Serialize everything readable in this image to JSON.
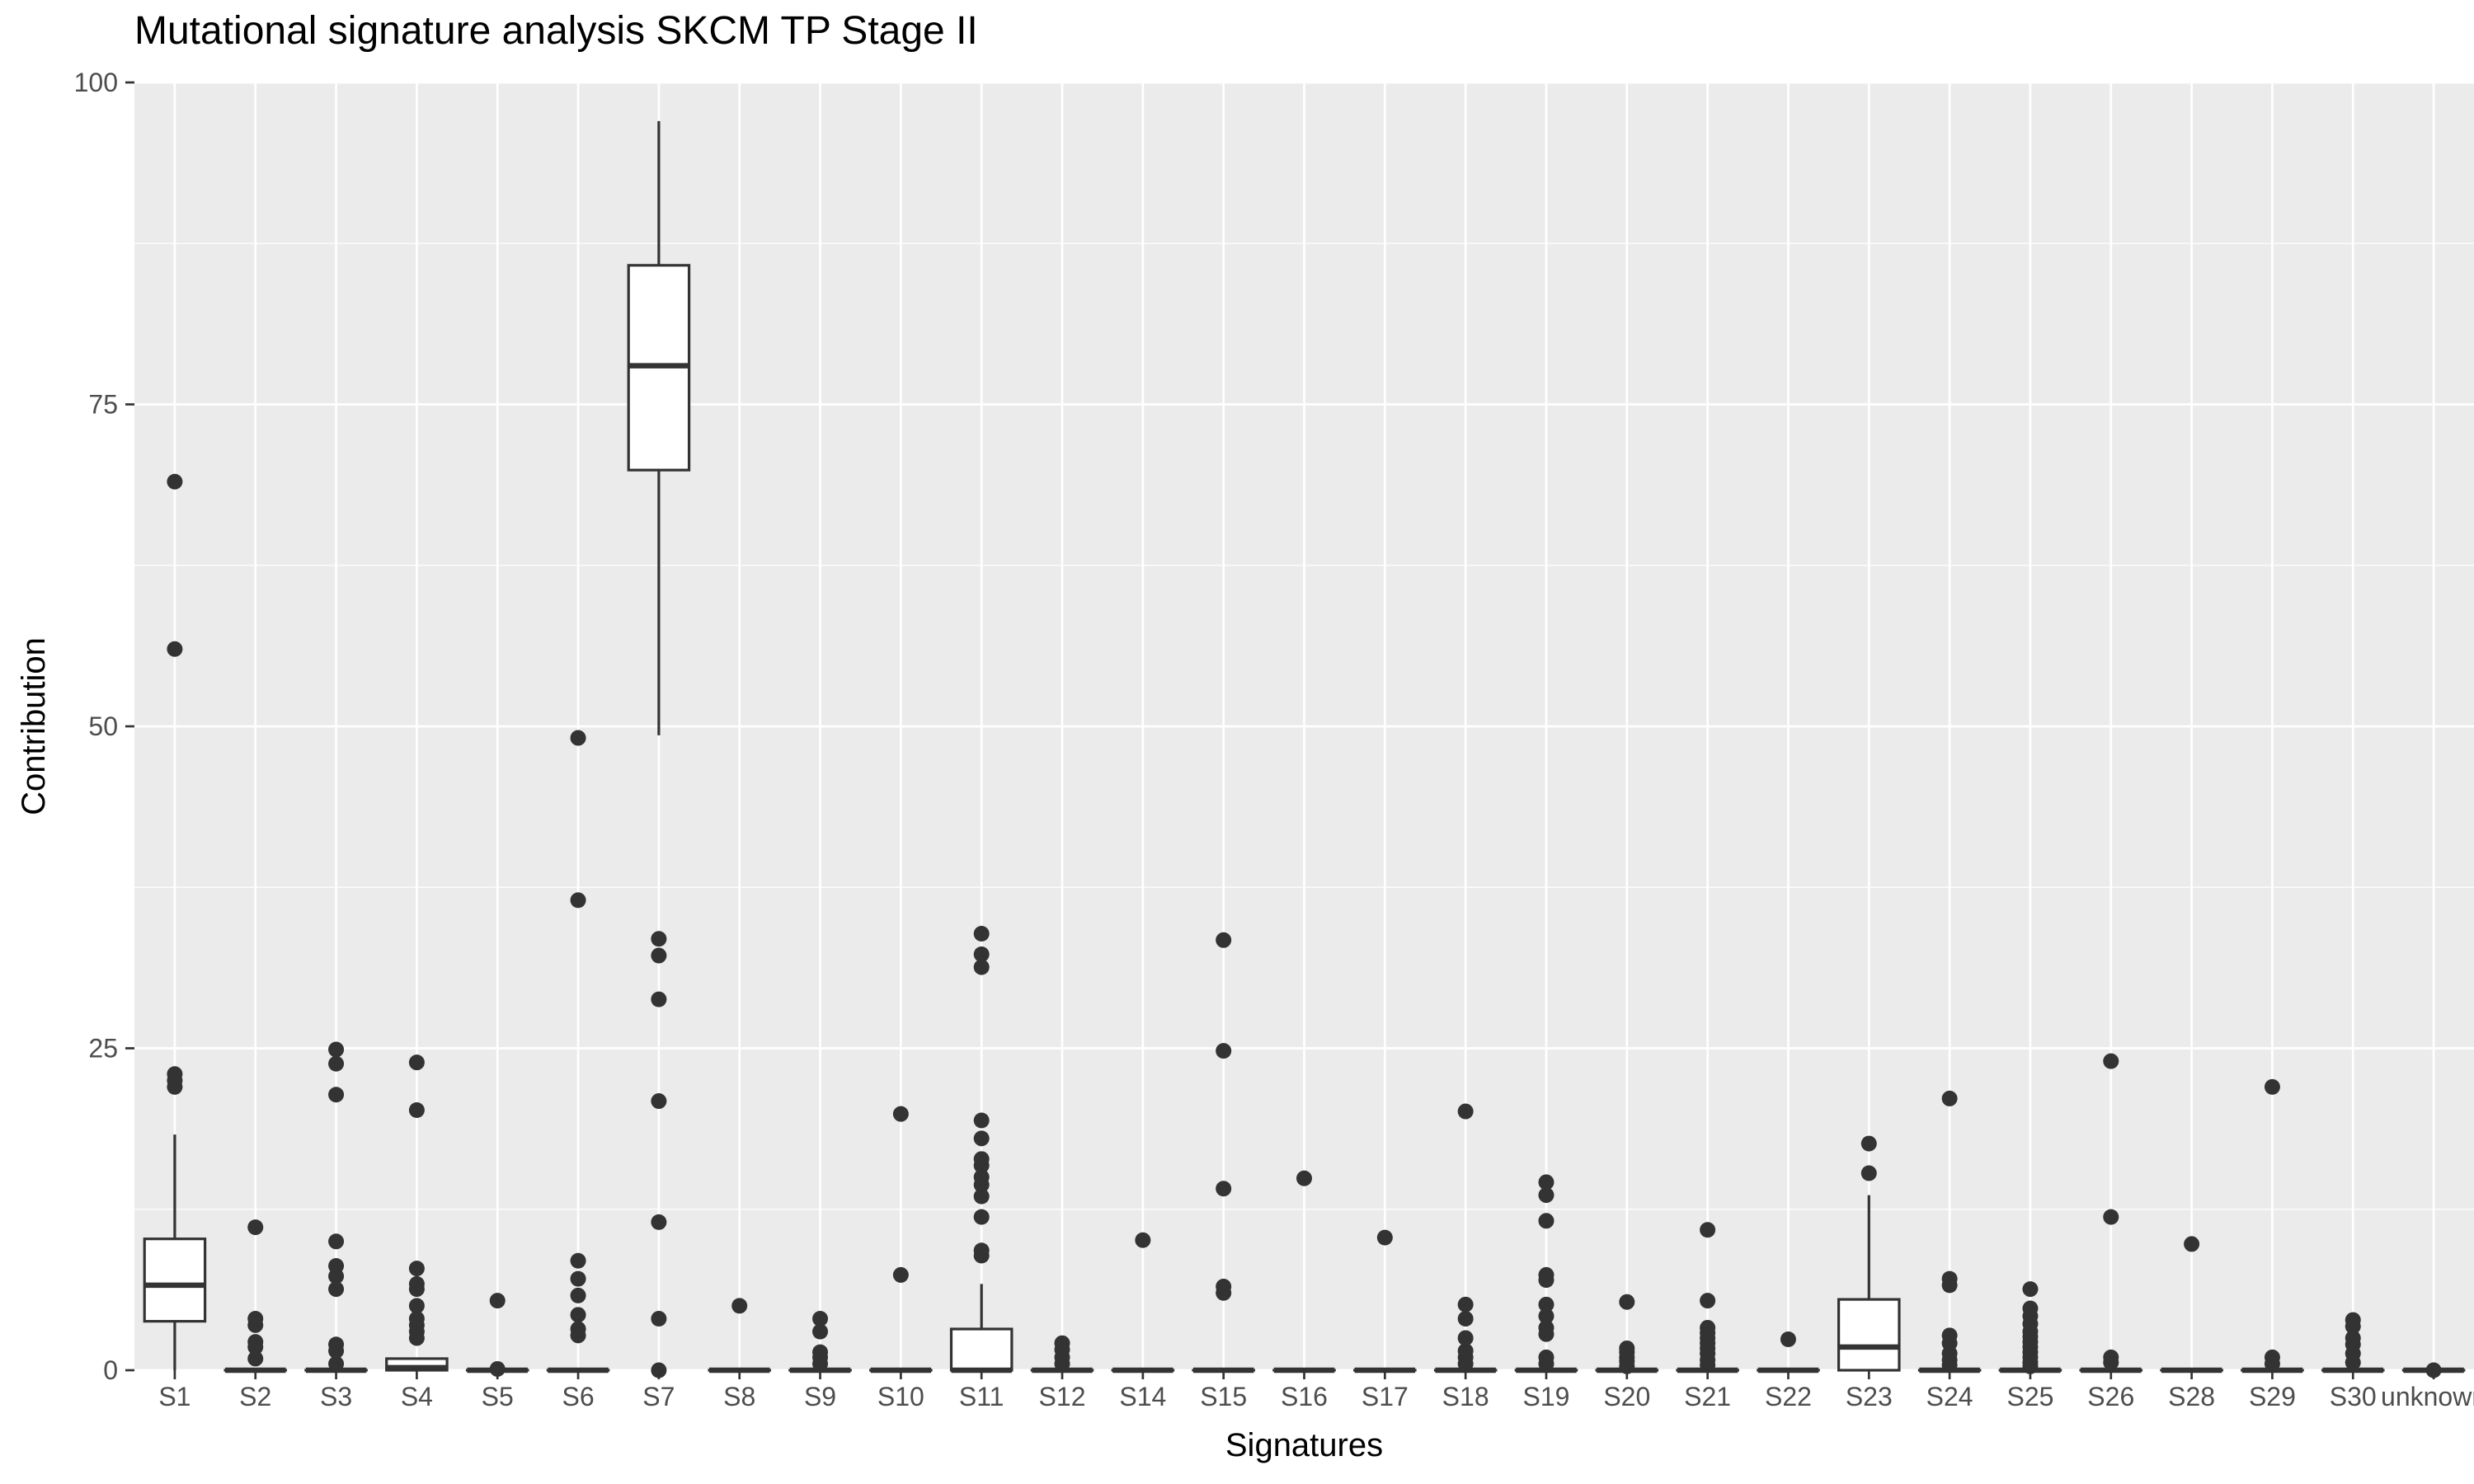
{
  "chart_data": {
    "type": "boxplot",
    "title": "Mutational signature analysis SKCM TP Stage II",
    "xlabel": "Signatures",
    "ylabel": "Contribution",
    "ylim": [
      0,
      100
    ],
    "yticks": [
      0,
      25,
      50,
      75,
      100
    ],
    "grid": true,
    "legend": "none",
    "colors": {
      "panel": "#ebebeb",
      "grid_major": "#ffffff",
      "box_fill": "#ffffff",
      "box_stroke": "#333333",
      "outlier": "#333333",
      "tick_text": "#4d4d4d"
    },
    "categories": [
      "S1",
      "S2",
      "S3",
      "S4",
      "S5",
      "S6",
      "S7",
      "S8",
      "S9",
      "S10",
      "S11",
      "S12",
      "S14",
      "S15",
      "S16",
      "S17",
      "S18",
      "S19",
      "S20",
      "S21",
      "S22",
      "S23",
      "S24",
      "S25",
      "S26",
      "S28",
      "S29",
      "S30",
      "unknown"
    ],
    "boxes": [
      {
        "name": "S1",
        "q1": 3.8,
        "median": 6.6,
        "q3": 10.2,
        "whisker_low": 0,
        "whisker_high": 18.3,
        "outliers": [
          22.0,
          22.5,
          23.0,
          56.0,
          69.0
        ]
      },
      {
        "name": "S2",
        "q1": 0,
        "median": 0,
        "q3": 0,
        "whisker_low": 0,
        "whisker_high": 0,
        "outliers": [
          0.9,
          1.8,
          2.2,
          3.5,
          4.0,
          11.1
        ]
      },
      {
        "name": "S3",
        "q1": 0,
        "median": 0,
        "q3": 0,
        "whisker_low": 0,
        "whisker_high": 0,
        "outliers": [
          0.5,
          1.5,
          2.0,
          6.3,
          7.3,
          8.1,
          10.0,
          21.4,
          23.8,
          24.9
        ]
      },
      {
        "name": "S4",
        "q1": 0,
        "median": 0.2,
        "q3": 0.9,
        "whisker_low": 0,
        "whisker_high": 0.9,
        "outliers": [
          2.5,
          3.0,
          3.5,
          4.0,
          5.0,
          6.3,
          6.7,
          7.9,
          20.2,
          23.9
        ]
      },
      {
        "name": "S5",
        "q1": 0,
        "median": 0,
        "q3": 0,
        "whisker_low": 0,
        "whisker_high": 0,
        "outliers": [
          0.1,
          5.4
        ]
      },
      {
        "name": "S6",
        "q1": 0,
        "median": 0,
        "q3": 0,
        "whisker_low": 0,
        "whisker_high": 0,
        "outliers": [
          2.7,
          3.2,
          4.3,
          5.8,
          7.1,
          8.5,
          36.5,
          49.1
        ]
      },
      {
        "name": "S7",
        "q1": 69.9,
        "median": 78.0,
        "q3": 85.8,
        "whisker_low": 49.3,
        "whisker_high": 97.0,
        "outliers": [
          0,
          4.0,
          11.5,
          20.9,
          28.8,
          32.2,
          33.5
        ]
      },
      {
        "name": "S8",
        "q1": 0,
        "median": 0,
        "q3": 0,
        "whisker_low": 0,
        "whisker_high": 0,
        "outliers": [
          5.0
        ]
      },
      {
        "name": "S9",
        "q1": 0,
        "median": 0,
        "q3": 0,
        "whisker_low": 0,
        "whisker_high": 0,
        "outliers": [
          0.5,
          1.0,
          1.4,
          3.0,
          4.0
        ]
      },
      {
        "name": "S10",
        "q1": 0,
        "median": 0,
        "q3": 0,
        "whisker_low": 0,
        "whisker_high": 0,
        "outliers": [
          7.4,
          19.9
        ]
      },
      {
        "name": "S11",
        "q1": 0,
        "median": 0,
        "q3": 3.2,
        "whisker_low": 0,
        "whisker_high": 6.7,
        "outliers": [
          8.9,
          9.3,
          11.9,
          13.5,
          14.4,
          15.0,
          15.9,
          16.4,
          18.0,
          19.4,
          31.3,
          32.3,
          33.9
        ]
      },
      {
        "name": "S12",
        "q1": 0,
        "median": 0,
        "q3": 0,
        "whisker_low": 0,
        "whisker_high": 0,
        "outliers": [
          0.5,
          1.0,
          1.6,
          2.1
        ]
      },
      {
        "name": "S14",
        "q1": 0,
        "median": 0,
        "q3": 0,
        "whisker_low": 0,
        "whisker_high": 0,
        "outliers": [
          10.1
        ]
      },
      {
        "name": "S15",
        "q1": 0,
        "median": 0,
        "q3": 0,
        "whisker_low": 0,
        "whisker_high": 0,
        "outliers": [
          6.0,
          6.5,
          14.1,
          24.8,
          33.4
        ]
      },
      {
        "name": "S16",
        "q1": 0,
        "median": 0,
        "q3": 0,
        "whisker_low": 0,
        "whisker_high": 0,
        "outliers": [
          14.9
        ]
      },
      {
        "name": "S17",
        "q1": 0,
        "median": 0,
        "q3": 0,
        "whisker_low": 0,
        "whisker_high": 0,
        "outliers": [
          10.3
        ]
      },
      {
        "name": "S18",
        "q1": 0,
        "median": 0,
        "q3": 0,
        "whisker_low": 0,
        "whisker_high": 0,
        "outliers": [
          0.5,
          1.0,
          1.5,
          2.5,
          4.0,
          5.1,
          20.1
        ]
      },
      {
        "name": "S19",
        "q1": 0,
        "median": 0,
        "q3": 0,
        "whisker_low": 0,
        "whisker_high": 0,
        "outliers": [
          0.5,
          1.0,
          2.8,
          3.3,
          4.2,
          5.1,
          7.0,
          7.4,
          11.6,
          13.6,
          14.6
        ]
      },
      {
        "name": "S20",
        "q1": 0,
        "median": 0,
        "q3": 0,
        "whisker_low": 0,
        "whisker_high": 0,
        "outliers": [
          0.3,
          0.7,
          1.0,
          1.4,
          1.7,
          5.3
        ]
      },
      {
        "name": "S21",
        "q1": 0,
        "median": 0,
        "q3": 0,
        "whisker_low": 0,
        "whisker_high": 0,
        "outliers": [
          0.4,
          0.8,
          1.3,
          1.7,
          2.1,
          2.5,
          2.9,
          3.3,
          5.4,
          10.9
        ]
      },
      {
        "name": "S22",
        "q1": 0,
        "median": 0,
        "q3": 0,
        "whisker_low": 0,
        "whisker_high": 0,
        "outliers": [
          2.4
        ]
      },
      {
        "name": "S23",
        "q1": 0,
        "median": 1.8,
        "q3": 5.5,
        "whisker_low": 0,
        "whisker_high": 13.6,
        "outliers": [
          15.3,
          17.6
        ]
      },
      {
        "name": "S24",
        "q1": 0,
        "median": 0,
        "q3": 0,
        "whisker_low": 0,
        "whisker_high": 0,
        "outliers": [
          0.4,
          0.8,
          1.3,
          2.1,
          2.7,
          6.6,
          7.1,
          21.1
        ]
      },
      {
        "name": "S25",
        "q1": 0,
        "median": 0,
        "q3": 0,
        "whisker_low": 0,
        "whisker_high": 0,
        "outliers": [
          0.3,
          0.6,
          1.0,
          1.4,
          1.8,
          2.2,
          2.6,
          3.0,
          3.6,
          4.2,
          4.8,
          6.3
        ]
      },
      {
        "name": "S26",
        "q1": 0,
        "median": 0,
        "q3": 0,
        "whisker_low": 0,
        "whisker_high": 0,
        "outliers": [
          0.6,
          1.0,
          11.9,
          24.0
        ]
      },
      {
        "name": "S28",
        "q1": 0,
        "median": 0,
        "q3": 0,
        "whisker_low": 0,
        "whisker_high": 0,
        "outliers": [
          9.8
        ]
      },
      {
        "name": "S29",
        "q1": 0,
        "median": 0,
        "q3": 0,
        "whisker_low": 0,
        "whisker_high": 0,
        "outliers": [
          0.5,
          1.0,
          22.0
        ]
      },
      {
        "name": "S30",
        "q1": 0,
        "median": 0,
        "q3": 0,
        "whisker_low": 0,
        "whisker_high": 0,
        "outliers": [
          0.6,
          1.3,
          2.0,
          2.5,
          3.4,
          3.9
        ]
      },
      {
        "name": "unknown",
        "q1": 0,
        "median": 0,
        "q3": 0,
        "whisker_low": 0,
        "whisker_high": 0,
        "outliers": [
          0
        ]
      }
    ]
  }
}
